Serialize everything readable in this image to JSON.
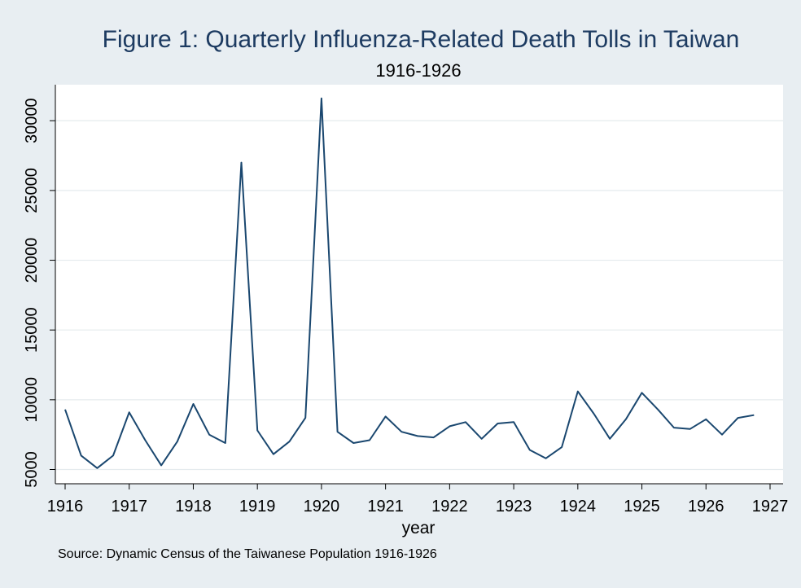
{
  "chart_data": {
    "type": "line",
    "title": "Figure 1: Quarterly Influenza-Related Death Tolls in Taiwan",
    "subtitle": "1916-1926",
    "xlabel": "year",
    "ylabel": "",
    "note": "Source: Dynamic Census of the Taiwanese Population 1916-1926",
    "xlim": [
      1916,
      1927
    ],
    "ylim": [
      5000,
      32000
    ],
    "x_ticks": [
      "1916",
      "1917",
      "1918",
      "1919",
      "1920",
      "1921",
      "1922",
      "1923",
      "1924",
      "1925",
      "1926",
      "1927"
    ],
    "y_ticks": [
      "5000",
      "10000",
      "15000",
      "20000",
      "25000",
      "30000"
    ],
    "grid": true,
    "legend": "none",
    "colors": {
      "line": "#1a476f",
      "plot_bg": "#ffffff",
      "outer_bg": "#e8eef2",
      "grid": "#e5ebee",
      "title": "#1d3b61"
    },
    "series": [
      {
        "x": [
          1916,
          1916.25,
          1916.5,
          1916.75,
          1917,
          1917.25,
          1917.5,
          1917.75,
          1918,
          1918.25,
          1918.5,
          1918.75,
          1919,
          1919.25,
          1919.5,
          1919.75,
          1920,
          1920.25,
          1920.5,
          1920.75,
          1921,
          1921.25,
          1921.5,
          1921.75,
          1922,
          1922.25,
          1922.5,
          1922.75,
          1923,
          1923.25,
          1923.5,
          1923.75,
          1924,
          1924.25,
          1924.5,
          1924.75,
          1925,
          1925.25,
          1925.5,
          1925.75,
          1926,
          1926.25,
          1926.5,
          1926.75
        ],
        "values": [
          9300,
          6000,
          5100,
          6000,
          9100,
          7100,
          5300,
          7000,
          9700,
          7500,
          6900,
          27000,
          7800,
          6100,
          7000,
          8700,
          31600,
          7700,
          6900,
          7100,
          8800,
          7700,
          7400,
          7300,
          8100,
          8400,
          7200,
          8300,
          8400,
          6400,
          5800,
          6600,
          10600,
          9000,
          7200,
          8600,
          10500,
          9300,
          8000,
          7900,
          8600,
          7500,
          8700,
          8900
        ]
      }
    ]
  }
}
